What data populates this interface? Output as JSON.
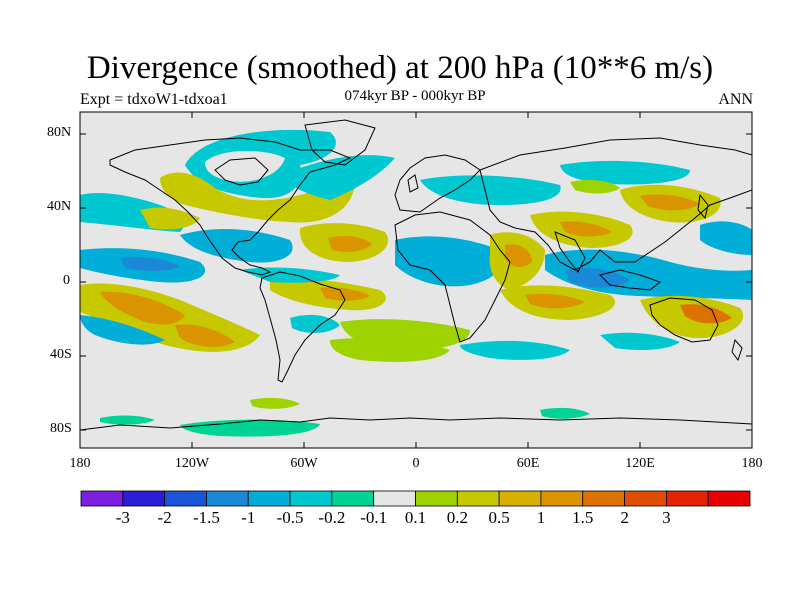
{
  "title": "Divergence (smoothed) at 200 hPa (10**6 m/s)",
  "subtitle": "074kyr BP - 000kyr BP",
  "experiment_label": "Expt = tdxoW1-tdxoa1",
  "season_label": "ANN",
  "latitude_labels": [
    "80N",
    "40N",
    "0",
    "40S",
    "80S"
  ],
  "longitude_labels": [
    "180",
    "120W",
    "60W",
    "0",
    "60E",
    "120E",
    "180"
  ],
  "colorbar": {
    "colors": [
      "#7b1fe0",
      "#2a1fd6",
      "#1a55d8",
      "#1a8ad8",
      "#00aed8",
      "#00c8d0",
      "#00d494",
      "#e6e6e6",
      "#9ed200",
      "#c6c800",
      "#d8b000",
      "#da9400",
      "#de7200",
      "#e04e00",
      "#e22400",
      "#e80000"
    ],
    "labels": [
      "-3",
      "-2",
      "-1.5",
      "-1",
      "-0.5",
      "-0.2",
      "-0.1",
      "0.1",
      "0.2",
      "0.5",
      "1",
      "1.5",
      "2",
      "3"
    ]
  },
  "map_data": {
    "projection": "cylindrical equidistant",
    "lon_range": [
      -180,
      180
    ],
    "lat_range": [
      -90,
      90
    ],
    "background_color": "#e6e6e6",
    "features": [
      {
        "name": "tropical-pacific-convergence-band",
        "sign": "negative"
      },
      {
        "name": "south-pacific-divergence-band",
        "sign": "positive"
      },
      {
        "name": "maritime-continent-convergence",
        "sign": "negative"
      },
      {
        "name": "north-atlantic-divergence",
        "sign": "positive"
      },
      {
        "name": "hudson-bay-convergence",
        "sign": "negative"
      },
      {
        "name": "indian-ocean-divergence",
        "sign": "positive"
      },
      {
        "name": "southern-ocean-weak-bands",
        "sign": "mixed"
      }
    ]
  }
}
